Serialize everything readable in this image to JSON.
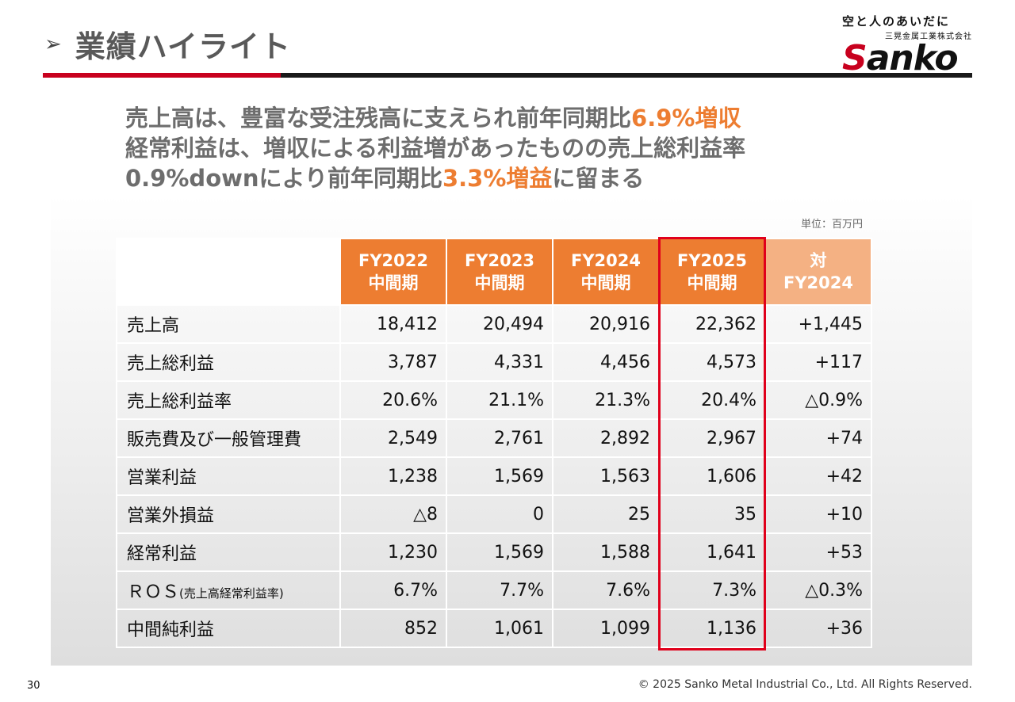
{
  "header": {
    "title_arrow": "➢",
    "title": "業績ハイライト"
  },
  "logo": {
    "tagline": "空と人のあいだに",
    "company": "三晃金属工業株式会社",
    "word_s": "S",
    "word_rest": "anko"
  },
  "headline": {
    "l1_a": "売上高は、豊富な受注残高に支えられ前年同期比",
    "l1_b": "6.9%増収",
    "l2": "経常利益は、増収による利益増があったものの売上総利益率",
    "l3_a": "0.9%downにより前年同期比",
    "l3_b": "3.3%増益",
    "l3_c": "に留まる"
  },
  "unit": "単位：百万円",
  "table": {
    "headers": [
      {
        "l1": "FY2022",
        "l2": "中間期"
      },
      {
        "l1": "FY2023",
        "l2": "中間期"
      },
      {
        "l1": "FY2024",
        "l2": "中間期"
      },
      {
        "l1": "FY2025",
        "l2": "中間期"
      },
      {
        "l1": "対",
        "l2": "FY2024"
      }
    ],
    "rows": [
      {
        "label": "売上高",
        "values": [
          "18,412",
          "20,494",
          "20,916",
          "22,362",
          "+1,445"
        ]
      },
      {
        "label": "売上総利益",
        "values": [
          "3,787",
          "4,331",
          "4,456",
          "4,573",
          "+117"
        ]
      },
      {
        "label": "売上総利益率",
        "values": [
          "20.6%",
          "21.1%",
          "21.3%",
          "20.4%",
          "△0.9%"
        ]
      },
      {
        "label": "販売費及び一般管理費",
        "values": [
          "2,549",
          "2,761",
          "2,892",
          "2,967",
          "+74"
        ]
      },
      {
        "label": "営業利益",
        "values": [
          "1,238",
          "1,569",
          "1,563",
          "1,606",
          "+42"
        ]
      },
      {
        "label": "営業外損益",
        "values": [
          "△8",
          "0",
          "25",
          "35",
          "+10"
        ]
      },
      {
        "label": "経常利益",
        "values": [
          "1,230",
          "1,569",
          "1,588",
          "1,641",
          "+53"
        ]
      },
      {
        "label": "ＲＯＳ",
        "label_small": "(売上高経常利益率)",
        "values": [
          "6.7%",
          "7.7%",
          "7.6%",
          "7.3%",
          "△0.3%"
        ]
      },
      {
        "label": "中間純利益",
        "values": [
          "852",
          "1,061",
          "1,099",
          "1,136",
          "+36"
        ]
      }
    ]
  },
  "footer": {
    "page_number": "30",
    "copyright": "© 2025 Sanko Metal Industrial Co., Ltd. All Rights Reserved."
  },
  "colors": {
    "accent_orange": "#ed7d31",
    "compare_orange": "#f4b183",
    "highlight_red": "#e0001b",
    "brand_red": "#c8001e"
  }
}
